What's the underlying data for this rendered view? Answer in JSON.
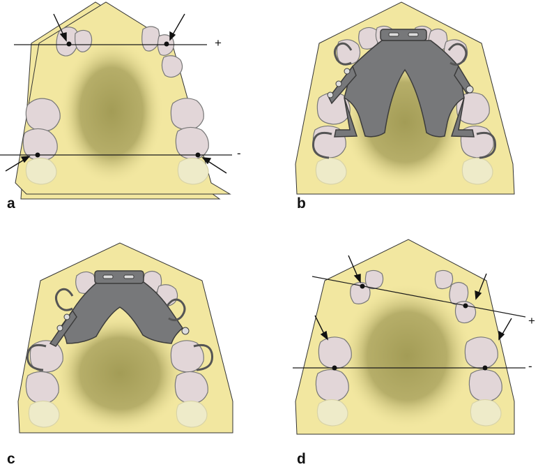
{
  "figure": {
    "panels": [
      {
        "id": "a",
        "label": "a",
        "appliance": "none",
        "plus_sign": "+",
        "minus_sign": "-"
      },
      {
        "id": "b",
        "label": "b",
        "appliance": "palatal-plate-full",
        "plus_sign": "",
        "minus_sign": ""
      },
      {
        "id": "c",
        "label": "c",
        "appliance": "palatal-plate-anterior",
        "plus_sign": "",
        "minus_sign": ""
      },
      {
        "id": "d",
        "label": "d",
        "appliance": "none",
        "plus_sign": "+",
        "minus_sign": "-"
      }
    ]
  },
  "colors": {
    "cast": "#f2e7a0",
    "palate_shadow": "#a39c56",
    "tooth": "#e2d6d8",
    "tooth_faded": "#eeebc9",
    "metal": "#77787a",
    "metal_dark": "#3b3b3b",
    "line": "#1a1a1a"
  }
}
